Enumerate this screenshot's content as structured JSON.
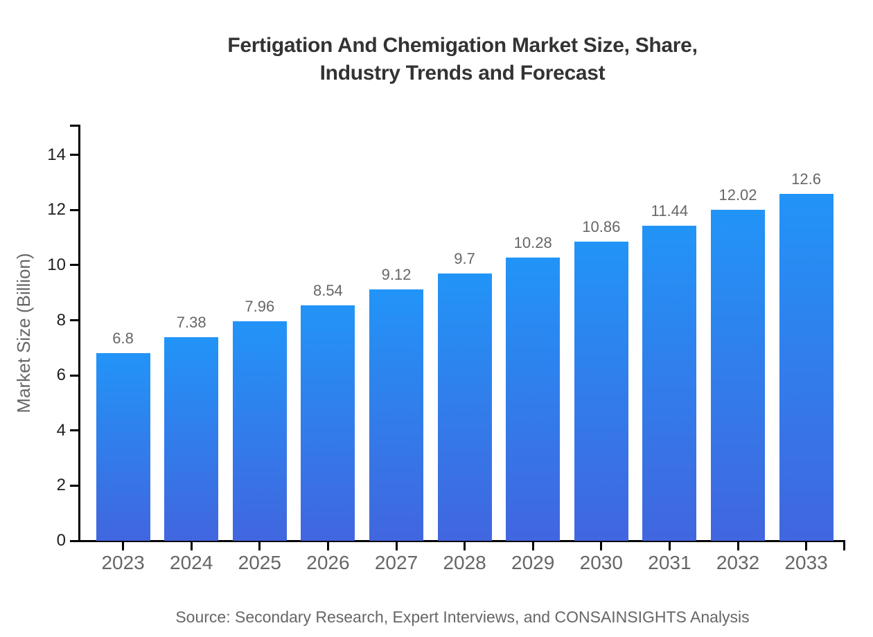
{
  "title": {
    "lines": [
      "Fertigation And Chemigation Market Size, Share,",
      "Industry Trends and Forecast"
    ]
  },
  "source": "Source: Secondary Research, Expert Interviews, and CONSAINSIGHTS Analysis",
  "chart_data": {
    "type": "bar",
    "title": "Fertigation And Chemigation Market Size, Share, Industry Trends and Forecast",
    "categories": [
      "2023",
      "2024",
      "2025",
      "2026",
      "2027",
      "2028",
      "2029",
      "2030",
      "2031",
      "2032",
      "2033"
    ],
    "values": [
      6.8,
      7.38,
      7.96,
      8.54,
      9.12,
      9.7,
      10.28,
      10.86,
      11.44,
      12.02,
      12.6
    ],
    "value_labels": [
      "6.8",
      "7.38",
      "7.96",
      "8.54",
      "9.12",
      "9.7",
      "10.28",
      "10.86",
      "11.44",
      "12.02",
      "12.6"
    ],
    "xlabel": "",
    "ylabel": "Market Size (Billion)",
    "yticks": [
      0,
      2,
      4,
      6,
      8,
      10,
      12,
      14
    ],
    "ylim": [
      0,
      15.1
    ],
    "grid": false,
    "legend": false,
    "colors": {
      "bar_gradient_top": "#2294f7",
      "bar_gradient_bottom": "#4166df",
      "axis": "#000000",
      "title_text": "#333333",
      "ytick_text": "#1f1f1f",
      "xtick_text": "#666666",
      "value_text": "#666666",
      "source_text": "#666666",
      "background": "#ffffff"
    }
  }
}
